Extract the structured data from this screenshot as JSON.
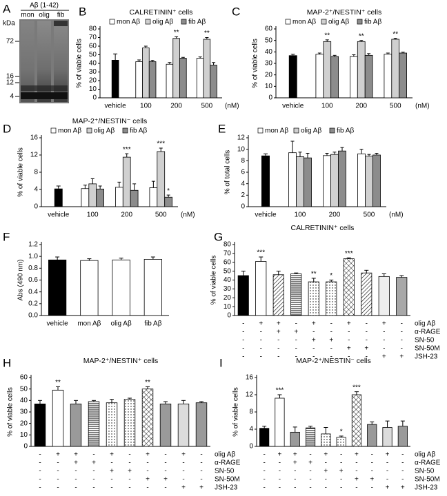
{
  "gel": {
    "panel": "A",
    "title": "Aβ (1-42)",
    "lanes": [
      "mon",
      "olig",
      "fib"
    ],
    "unit": "kDa",
    "markers": [
      72,
      16,
      12,
      4
    ]
  },
  "chart_data": [
    {
      "type": "bar",
      "panel": "B",
      "title": "CALRETININ⁺ cells",
      "ylabel": "% of viable cells",
      "xunit": "(nM)",
      "categories": [
        "vehicle",
        "100",
        "200",
        "500"
      ],
      "control": {
        "value": 44,
        "error": 7,
        "color": "#000000"
      },
      "series": [
        {
          "name": "mon Aβ",
          "color": "#ffffff",
          "values": [
            null,
            42,
            39,
            46
          ],
          "errors": [
            null,
            2,
            2,
            1.5
          ]
        },
        {
          "name": "olig Aβ",
          "color": "#d0d0d0",
          "values": [
            null,
            58,
            69,
            68
          ],
          "errors": [
            null,
            2,
            2,
            2
          ],
          "sig": [
            null,
            null,
            "**",
            "**"
          ]
        },
        {
          "name": "fib Aβ",
          "color": "#8c8c8c",
          "values": [
            null,
            42,
            46,
            38
          ],
          "errors": [
            null,
            1.5,
            1,
            3
          ]
        }
      ],
      "ylim": [
        0,
        80
      ],
      "yticks": [
        0,
        10,
        20,
        30,
        40,
        50,
        60,
        70,
        80
      ]
    },
    {
      "type": "bar",
      "panel": "C",
      "title": "MAP-2⁺/NESTIN⁺ cells",
      "ylabel": "% of viable cells",
      "xunit": "(nM)",
      "categories": [
        "vehicle",
        "100",
        "200",
        "500"
      ],
      "control": {
        "value": 37,
        "error": 1,
        "color": "#000000"
      },
      "series": [
        {
          "name": "mon Aβ",
          "color": "#ffffff",
          "values": [
            null,
            38,
            36,
            38
          ],
          "errors": [
            null,
            1,
            1.5,
            1
          ]
        },
        {
          "name": "olig Aβ",
          "color": "#d0d0d0",
          "values": [
            null,
            49,
            49,
            51
          ],
          "errors": [
            null,
            1.5,
            1,
            0.8
          ],
          "sig": [
            null,
            "**",
            "**",
            "**"
          ]
        },
        {
          "name": "fib Aβ",
          "color": "#8c8c8c",
          "values": [
            null,
            36,
            37,
            39
          ],
          "errors": [
            null,
            1,
            1.5,
            0.8
          ]
        }
      ],
      "ylim": [
        0,
        60
      ],
      "yticks": [
        0,
        10,
        20,
        30,
        40,
        50,
        60
      ]
    },
    {
      "type": "bar",
      "panel": "D",
      "title": "MAP-2⁺/NESTIN⁻ cells",
      "ylabel": "% of viable cells",
      "xunit": "(nM)",
      "categories": [
        "vehicle",
        "100",
        "200",
        "500"
      ],
      "control": {
        "value": 4.2,
        "error": 0.6,
        "color": "#000000"
      },
      "series": [
        {
          "name": "mon Aβ",
          "color": "#ffffff",
          "values": [
            null,
            4.2,
            4.5,
            4.4
          ],
          "errors": [
            null,
            0.8,
            1.2,
            1.5
          ]
        },
        {
          "name": "olig Aβ",
          "color": "#d0d0d0",
          "values": [
            null,
            5.3,
            11.5,
            12.8
          ],
          "errors": [
            null,
            1.2,
            0.8,
            0.8
          ],
          "sig": [
            null,
            null,
            "***",
            "***"
          ]
        },
        {
          "name": "fib Aβ",
          "color": "#8c8c8c",
          "values": [
            null,
            4.1,
            3.8,
            2.2
          ],
          "errors": [
            null,
            0.7,
            1.5,
            0.5
          ],
          "sig": [
            null,
            null,
            null,
            "*"
          ]
        }
      ],
      "ylim": [
        0,
        16
      ],
      "yticks": [
        0,
        4,
        8,
        12,
        16
      ]
    },
    {
      "type": "bar",
      "panel": "E",
      "ylabel": "% of total cells",
      "xunit": "(nM)",
      "categories": [
        "vehicle",
        "100",
        "200",
        "500"
      ],
      "control": {
        "value": 8.9,
        "error": 0.3,
        "color": "#000000"
      },
      "series": [
        {
          "name": "mon Aβ",
          "color": "#ffffff",
          "values": [
            null,
            9.4,
            8.9,
            9.2
          ],
          "errors": [
            null,
            2,
            0.4,
            0.8
          ]
        },
        {
          "name": "olig Aβ",
          "color": "#d0d0d0",
          "values": [
            null,
            8.7,
            9.1,
            8.8
          ],
          "errors": [
            null,
            0.8,
            0.4,
            0.3
          ]
        },
        {
          "name": "fib Aβ",
          "color": "#8c8c8c",
          "values": [
            null,
            8.5,
            9.7,
            9.0
          ],
          "errors": [
            null,
            0.8,
            0.6,
            0.3
          ]
        }
      ],
      "ylim": [
        0,
        12
      ],
      "yticks": [
        0,
        2,
        4,
        6,
        8,
        10,
        12
      ]
    },
    {
      "type": "bar",
      "panel": "F",
      "ylabel": "Abs (490 nm)",
      "categories": [
        "vehicle",
        "mon Aβ",
        "olig Aβ",
        "fib Aβ"
      ],
      "values": [
        0.94,
        0.93,
        0.94,
        0.95
      ],
      "errors": [
        0.05,
        0.03,
        0.03,
        0.04
      ],
      "colors": [
        "#000000",
        "#ffffff",
        "#ffffff",
        "#ffffff"
      ],
      "ylim": [
        0,
        1.2
      ],
      "yticks": [
        {
          "value": 0,
          "label": "0.0"
        },
        0.2,
        0.4,
        0.6,
        0.8,
        {
          "value": 1,
          "label": "1.0"
        },
        1.2
      ]
    },
    {
      "type": "bar",
      "panel": "G",
      "title": "CALRETININ⁺ cells",
      "ylabel": "% of viable cells",
      "values": [
        45,
        61,
        46,
        47,
        38,
        38,
        64,
        48,
        44,
        43
      ],
      "errors": [
        5,
        5,
        4,
        1,
        4,
        2,
        1,
        3,
        3,
        2
      ],
      "sig": [
        null,
        "***",
        null,
        null,
        "**",
        "*",
        "***",
        null,
        null,
        null
      ],
      "colors": [
        "#000000",
        "#ffffff",
        "#ffffff",
        "#ffffff",
        "#ffffff",
        "#ffffff",
        "#ffffff",
        "#ffffff",
        "#eeeeee",
        "#a8a8a8"
      ],
      "patterns": [
        "solid",
        "solid",
        "diagonal",
        "horizontal",
        "dotted",
        "dotted",
        "crosshatch",
        "diagonal",
        "solid",
        "solid"
      ],
      "treatments": {
        "labels": [
          "olig Aβ",
          "α-RAGE",
          "SN-50",
          "SN-50M",
          "JSH-23"
        ],
        "rows": [
          [
            "-",
            "+",
            "+",
            "-",
            "+",
            "-",
            "+",
            "-",
            "+",
            "-"
          ],
          [
            "-",
            "-",
            "+",
            "+",
            "-",
            "-",
            "-",
            "-",
            "-",
            "-"
          ],
          [
            "-",
            "-",
            "-",
            "-",
            "+",
            "+",
            "-",
            "-",
            "-",
            "-"
          ],
          [
            "-",
            "-",
            "-",
            "-",
            "-",
            "-",
            "+",
            "+",
            "-",
            "-"
          ],
          [
            "-",
            "-",
            "-",
            "-",
            "-",
            "-",
            "-",
            "-",
            "+",
            "+"
          ]
        ]
      },
      "ylim": [
        0,
        80
      ],
      "yticks": [
        0,
        10,
        20,
        30,
        40,
        50,
        60,
        70,
        80
      ]
    },
    {
      "type": "bar",
      "panel": "H",
      "title": "MAP-2⁺/NESTIN⁺ cells",
      "ylabel": "% of viable cells",
      "values": [
        37,
        49,
        37,
        39,
        38,
        41,
        50,
        37,
        37,
        38
      ],
      "errors": [
        3,
        3,
        3,
        1,
        3,
        1,
        2,
        2,
        3,
        1
      ],
      "sig": [
        null,
        "**",
        null,
        null,
        null,
        null,
        "**",
        null,
        null,
        null
      ],
      "colors": [
        "#000000",
        "#ffffff",
        "#9a9a9a",
        "#ffffff",
        "#ffffff",
        "#ffffff",
        "#ffffff",
        "#9a9a9a",
        "#dcdcdc",
        "#9a9a9a"
      ],
      "patterns": [
        "solid",
        "solid",
        "solid",
        "horizontal",
        "dotted",
        "dotted",
        "crosshatch",
        "solid",
        "solid",
        "solid"
      ],
      "treatments": {
        "labels": [
          "olig Aβ",
          "α-RAGE",
          "SN-50",
          "SN-50M",
          "JSH-23"
        ],
        "rows": [
          [
            "-",
            "+",
            "+",
            "-",
            "+",
            "-",
            "+",
            "-",
            "+",
            "-"
          ],
          [
            "-",
            "-",
            "+",
            "+",
            "-",
            "-",
            "-",
            "-",
            "-",
            "-"
          ],
          [
            "-",
            "-",
            "-",
            "-",
            "+",
            "+",
            "-",
            "-",
            "-",
            "-"
          ],
          [
            "-",
            "-",
            "-",
            "-",
            "-",
            "-",
            "+",
            "+",
            "-",
            "-"
          ],
          [
            "-",
            "-",
            "-",
            "-",
            "-",
            "-",
            "-",
            "-",
            "+",
            "+"
          ]
        ]
      },
      "ylim": [
        0,
        60
      ],
      "yticks": [
        0,
        10,
        20,
        30,
        40,
        50,
        60
      ]
    },
    {
      "type": "bar",
      "panel": "I",
      "title": "MAP-2⁺/NESTIN⁻ cells",
      "ylabel": "% of viable cells",
      "values": [
        4.2,
        11.2,
        3.3,
        4.3,
        2.9,
        2.1,
        12.0,
        5.1,
        4.4,
        4.7
      ],
      "errors": [
        0.5,
        0.8,
        1.2,
        0.4,
        1.5,
        0.3,
        0.7,
        0.6,
        1.5,
        1.2
      ],
      "sig": [
        null,
        "***",
        null,
        null,
        null,
        "*",
        "***",
        null,
        null,
        null
      ],
      "colors": [
        "#000000",
        "#ffffff",
        "#9a9a9a",
        "#ffffff",
        "#ffffff",
        "#ffffff",
        "#ffffff",
        "#9a9a9a",
        "#dcdcdc",
        "#9a9a9a"
      ],
      "patterns": [
        "solid",
        "solid",
        "solid",
        "horizontal",
        "dotted",
        "dotted",
        "crosshatch",
        "solid",
        "solid",
        "solid"
      ],
      "treatments": {
        "labels": [
          "olig Aβ",
          "α-RAGE",
          "SN-50",
          "SN-50M",
          "JSH-23"
        ],
        "rows": [
          [
            "-",
            "+",
            "+",
            "-",
            "+",
            "-",
            "+",
            "-",
            "+",
            "-"
          ],
          [
            "-",
            "-",
            "+",
            "+",
            "-",
            "-",
            "-",
            "-",
            "-",
            "-"
          ],
          [
            "-",
            "-",
            "-",
            "-",
            "+",
            "+",
            "-",
            "-",
            "-",
            "-"
          ],
          [
            "-",
            "-",
            "-",
            "-",
            "-",
            "-",
            "+",
            "+",
            "-",
            "-"
          ],
          [
            "-",
            "-",
            "-",
            "-",
            "-",
            "-",
            "-",
            "-",
            "+",
            "+"
          ]
        ]
      },
      "ylim": [
        0,
        16
      ],
      "yticks": [
        0,
        4,
        8,
        12,
        16
      ]
    }
  ]
}
